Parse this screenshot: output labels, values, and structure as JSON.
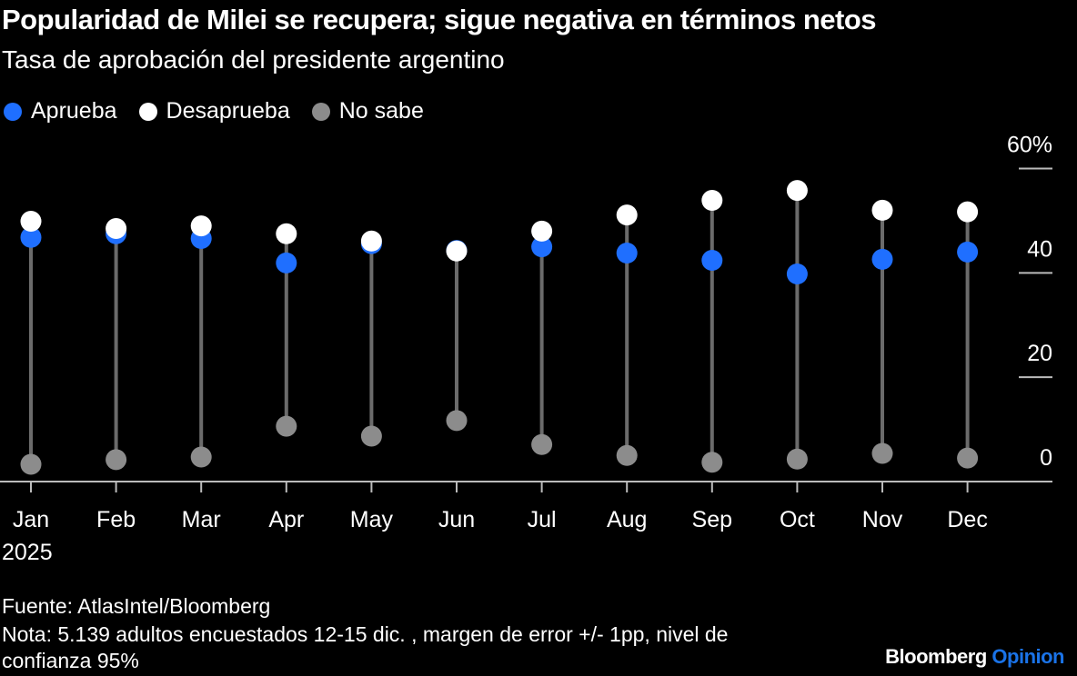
{
  "title": "Popularidad de Milei se recupera; sigue negativa en términos netos",
  "subtitle": "Tasa de aprobación del presidente argentino",
  "source": "Fuente: AtlasIntel/Bloomberg",
  "note_line1": "Nota: 5.139 adultos encuestados 12-15 dic. , margen de error +/- 1pp, nivel de",
  "note_line2": "confianza 95%",
  "brand": {
    "name": "Bloomberg",
    "product": "Opinion",
    "product_color": "#1a73e8"
  },
  "chart_data": {
    "type": "dot-range",
    "categories": [
      "Jan",
      "Feb",
      "Mar",
      "Apr",
      "May",
      "Jun",
      "Jul",
      "Aug",
      "Sep",
      "Oct",
      "Nov",
      "Dec"
    ],
    "year_label": "2025",
    "ylim": [
      0,
      60
    ],
    "yticks": [
      {
        "value": 0,
        "label": "0"
      },
      {
        "value": 20,
        "label": "20"
      },
      {
        "value": 40,
        "label": "40"
      },
      {
        "value": 60,
        "label": "60%"
      }
    ],
    "legend_placement": "top-left",
    "series": [
      {
        "name": "Aprueba",
        "color": "#1f6fff",
        "values": [
          46.8,
          47.5,
          46.6,
          41.9,
          45.6,
          44.3,
          45.0,
          43.8,
          42.4,
          39.8,
          42.6,
          44.0
        ]
      },
      {
        "name": "Desaprueba",
        "color": "#ffffff",
        "values": [
          49.9,
          48.5,
          49.0,
          47.5,
          46.1,
          44.2,
          48.0,
          51.1,
          53.9,
          55.8,
          52.0,
          51.7
        ]
      },
      {
        "name": "No sabe",
        "color": "#8c8c8c",
        "values": [
          3.3,
          4.2,
          4.7,
          10.6,
          8.7,
          11.7,
          7.1,
          5.0,
          3.7,
          4.3,
          5.4,
          4.5
        ]
      }
    ]
  }
}
